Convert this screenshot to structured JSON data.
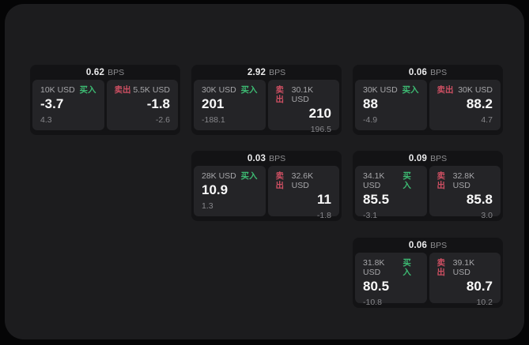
{
  "labels": {
    "buy": "买入",
    "sell": "卖出",
    "bps_unit": "BPS"
  },
  "colors": {
    "buy_green": "#3dbb73",
    "sell_red": "#cd4f62",
    "window_bg": "#1c1c1e",
    "card_bg": "#131315",
    "panel_bg": "#242427"
  },
  "cards": [
    {
      "bps": "0.62",
      "buy_amount": "10K USD",
      "sell_amount": "5.5K USD",
      "buy_value": "-3.7",
      "sell_value": "-1.8",
      "buy_sub": "4.3",
      "sell_sub": "-2.6"
    },
    {
      "bps": "2.92",
      "buy_amount": "30K USD",
      "sell_amount": "30.1K USD",
      "buy_value": "201",
      "sell_value": "210",
      "buy_sub": "-188.1",
      "sell_sub": "196.5"
    },
    {
      "bps": "0.06",
      "buy_amount": "30K USD",
      "sell_amount": "30K USD",
      "buy_value": "88",
      "sell_value": "88.2",
      "buy_sub": "-4.9",
      "sell_sub": "4.7"
    },
    {
      "bps": "0.03",
      "buy_amount": "28K USD",
      "sell_amount": "32.6K USD",
      "buy_value": "10.9",
      "sell_value": "11",
      "buy_sub": "1.3",
      "sell_sub": "-1.8"
    },
    {
      "bps": "0.09",
      "buy_amount": "34.1K USD",
      "sell_amount": "32.8K USD",
      "buy_value": "85.5",
      "sell_value": "85.8",
      "buy_sub": "-3.1",
      "sell_sub": "3.0"
    },
    {
      "bps": "0.06",
      "buy_amount": "31.8K USD",
      "sell_amount": "39.1K USD",
      "buy_value": "80.5",
      "sell_value": "80.7",
      "buy_sub": "-10.8",
      "sell_sub": "10.2"
    }
  ]
}
